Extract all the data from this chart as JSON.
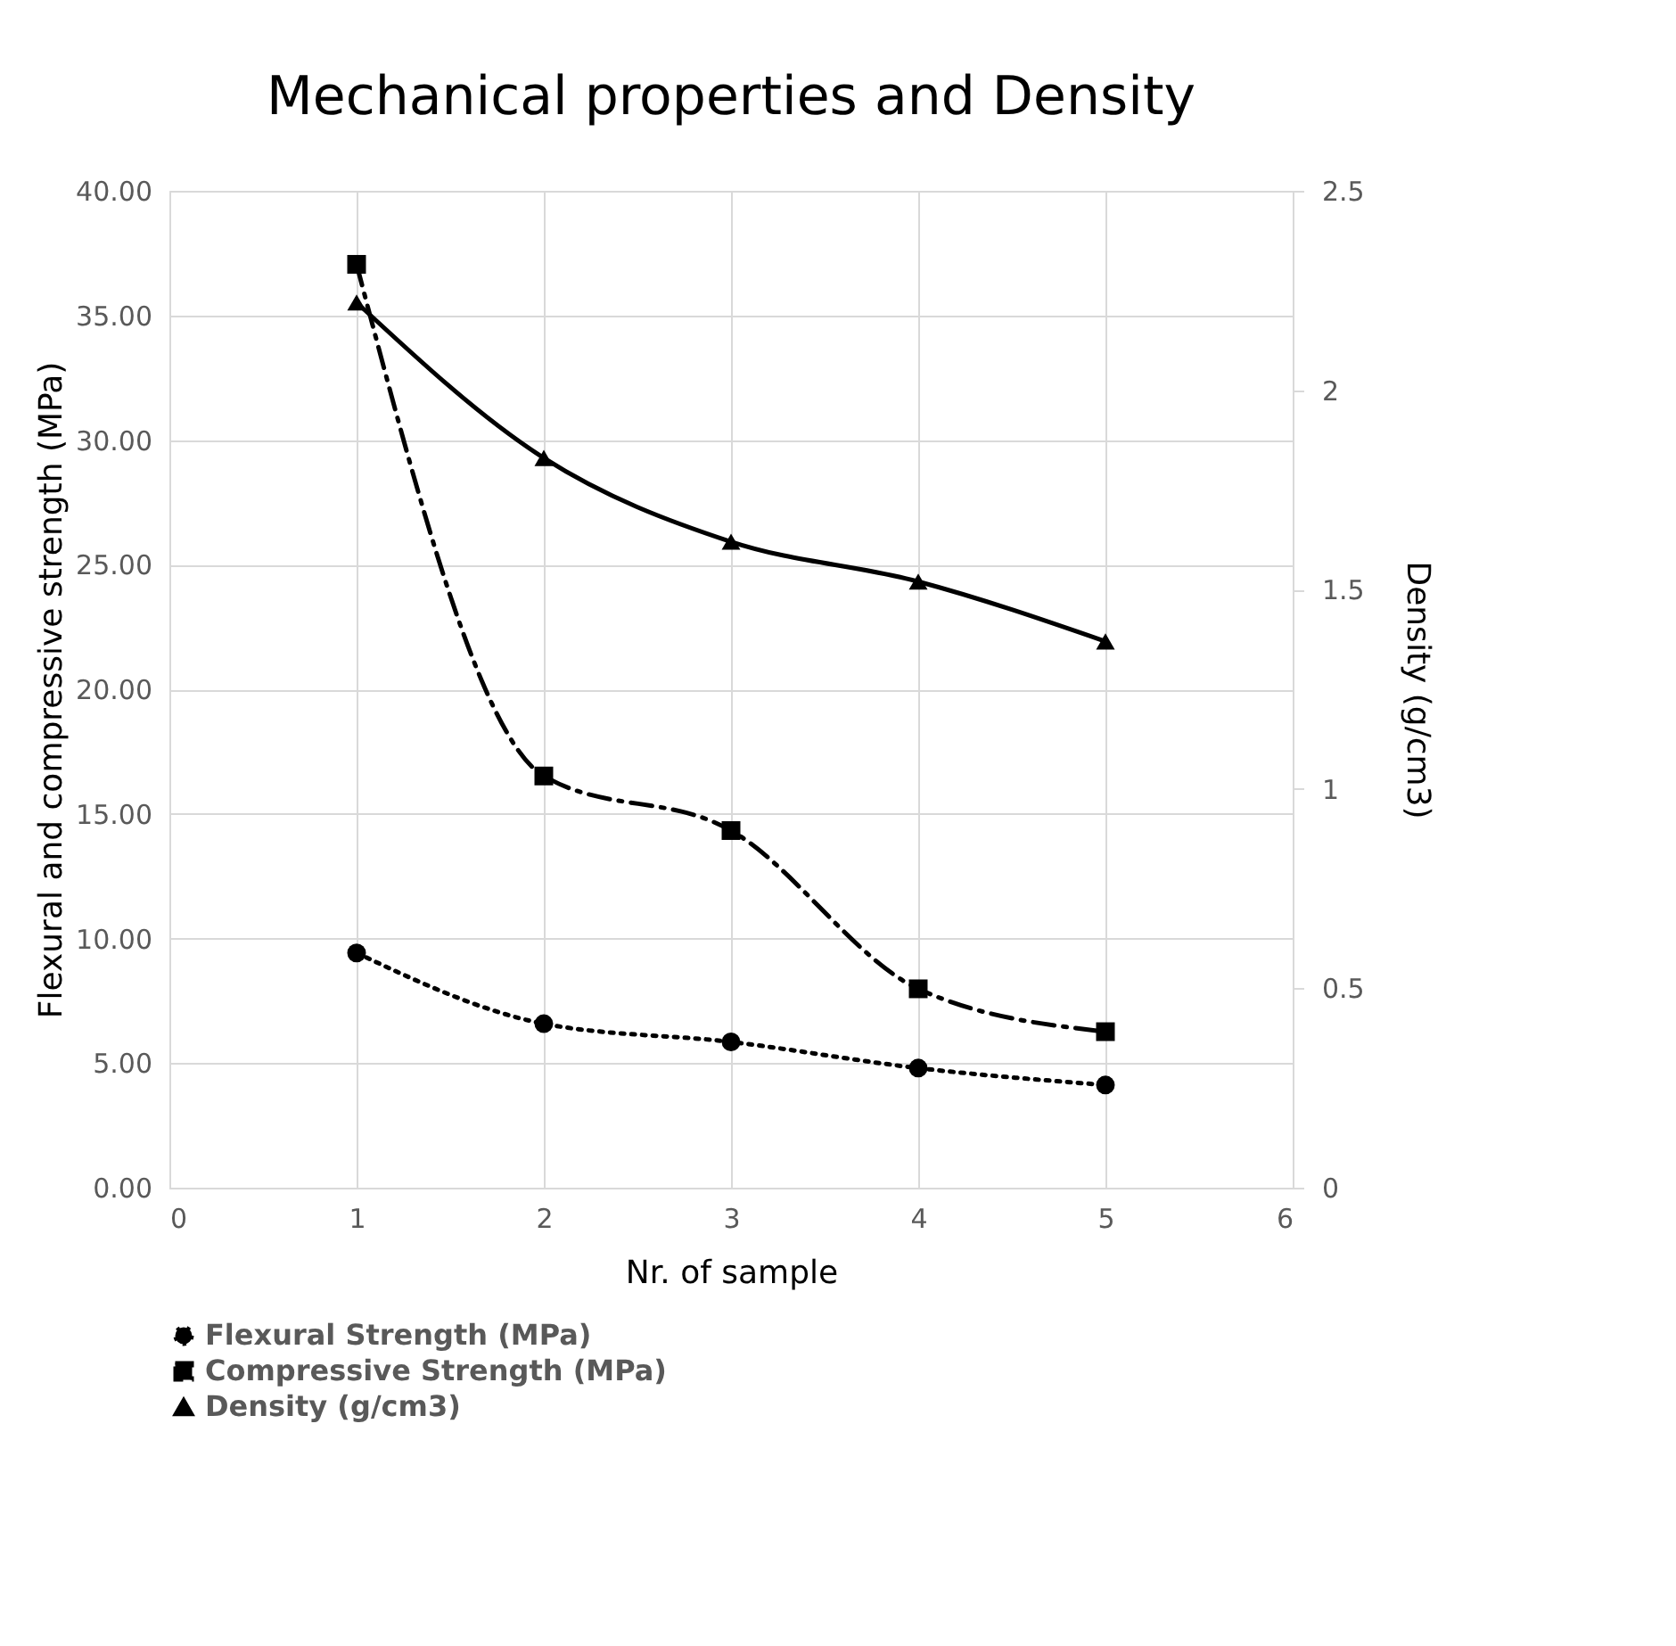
{
  "chart_data": {
    "type": "line",
    "title": "Mechanical properties and Density",
    "xlabel": "Nr. of sample",
    "ylabel": "Flexural and compressive strength  (MPa)",
    "y2label": "Density (g/cm3)",
    "x": [
      1,
      2,
      3,
      4,
      5
    ],
    "series": [
      {
        "name": "Flexural Strength (MPa)",
        "color": "#000000",
        "values": [
          9.42,
          6.58,
          5.85,
          4.8,
          4.12
        ],
        "marker": "circle",
        "line_style": "dotted"
      },
      {
        "name": "Compressive Strength (MPa)",
        "color": "#000000",
        "values": [
          37.05,
          16.52,
          14.33,
          7.98,
          6.26
        ],
        "marker": "square",
        "line_style": "dashed"
      },
      {
        "name": "Density (g/cm3)",
        "color": "#000000",
        "values": [
          2.22,
          1.83,
          1.62,
          1.52,
          1.37
        ],
        "marker": "triangle",
        "line_style": "solid",
        "axis": "y2"
      }
    ],
    "xlim": [
      0,
      6
    ],
    "xticks": [
      0,
      1,
      2,
      3,
      4,
      5,
      6
    ],
    "ylim": [
      0,
      40
    ],
    "yticks": [
      {
        "value": 0,
        "label": "0.00"
      },
      {
        "value": 5,
        "label": "5.00"
      },
      {
        "value": 10,
        "label": "10.00"
      },
      {
        "value": 15,
        "label": "15.00"
      },
      {
        "value": 20,
        "label": "20.00"
      },
      {
        "value": 25,
        "label": "25.00"
      },
      {
        "value": 30,
        "label": "30.00"
      },
      {
        "value": 35,
        "label": "35.00"
      },
      {
        "value": 40,
        "label": "40.00"
      }
    ],
    "y2lim": [
      0,
      2.5
    ],
    "y2ticks": [
      0,
      0.5,
      1,
      1.5,
      2,
      2.5
    ],
    "grid": true,
    "legend": "bottom"
  }
}
